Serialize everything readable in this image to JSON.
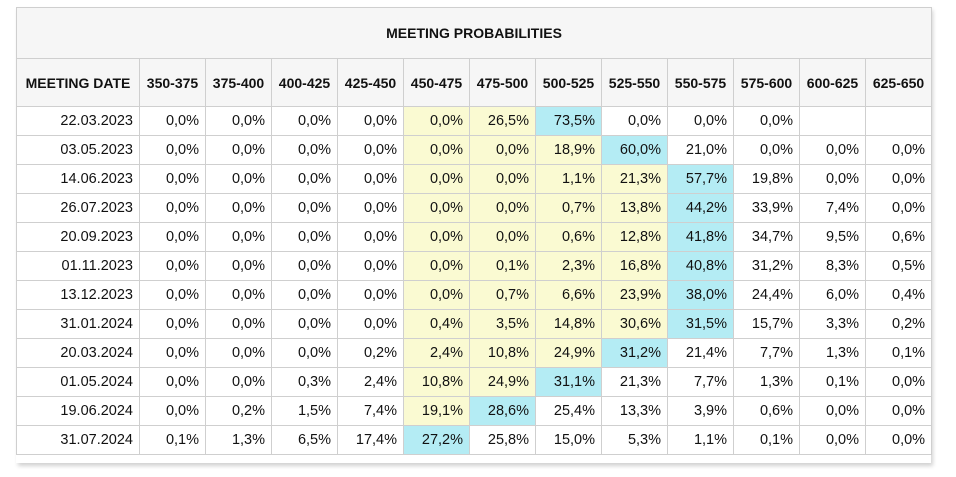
{
  "chart_data": {
    "type": "table",
    "title": "MEETING PROBABILITIES",
    "date_header": "MEETING DATE",
    "columns": [
      "350-375",
      "375-400",
      "400-425",
      "425-450",
      "450-475",
      "475-500",
      "500-525",
      "525-550",
      "550-575",
      "575-600",
      "600-625",
      "625-650"
    ],
    "rows": [
      {
        "date": "22.03.2023",
        "values": [
          "0,0%",
          "0,0%",
          "0,0%",
          "0,0%",
          "0,0%",
          "26,5%",
          "73,5%",
          "0,0%",
          "0,0%",
          "0,0%",
          "",
          ""
        ],
        "highlight": [
          "",
          "",
          "",
          "",
          "yellow",
          "yellow",
          "cyan",
          "",
          "",
          "",
          "",
          ""
        ]
      },
      {
        "date": "03.05.2023",
        "values": [
          "0,0%",
          "0,0%",
          "0,0%",
          "0,0%",
          "0,0%",
          "0,0%",
          "18,9%",
          "60,0%",
          "21,0%",
          "0,0%",
          "0,0%",
          "0,0%"
        ],
        "highlight": [
          "",
          "",
          "",
          "",
          "yellow",
          "yellow",
          "yellow",
          "cyan",
          "",
          "",
          "",
          ""
        ]
      },
      {
        "date": "14.06.2023",
        "values": [
          "0,0%",
          "0,0%",
          "0,0%",
          "0,0%",
          "0,0%",
          "0,0%",
          "1,1%",
          "21,3%",
          "57,7%",
          "19,8%",
          "0,0%",
          "0,0%"
        ],
        "highlight": [
          "",
          "",
          "",
          "",
          "yellow",
          "yellow",
          "yellow",
          "yellow",
          "cyan",
          "",
          "",
          ""
        ]
      },
      {
        "date": "26.07.2023",
        "values": [
          "0,0%",
          "0,0%",
          "0,0%",
          "0,0%",
          "0,0%",
          "0,0%",
          "0,7%",
          "13,8%",
          "44,2%",
          "33,9%",
          "7,4%",
          "0,0%"
        ],
        "highlight": [
          "",
          "",
          "",
          "",
          "yellow",
          "yellow",
          "yellow",
          "yellow",
          "cyan",
          "",
          "",
          ""
        ]
      },
      {
        "date": "20.09.2023",
        "values": [
          "0,0%",
          "0,0%",
          "0,0%",
          "0,0%",
          "0,0%",
          "0,0%",
          "0,6%",
          "12,8%",
          "41,8%",
          "34,7%",
          "9,5%",
          "0,6%"
        ],
        "highlight": [
          "",
          "",
          "",
          "",
          "yellow",
          "yellow",
          "yellow",
          "yellow",
          "cyan",
          "",
          "",
          ""
        ]
      },
      {
        "date": "01.11.2023",
        "values": [
          "0,0%",
          "0,0%",
          "0,0%",
          "0,0%",
          "0,0%",
          "0,1%",
          "2,3%",
          "16,8%",
          "40,8%",
          "31,2%",
          "8,3%",
          "0,5%"
        ],
        "highlight": [
          "",
          "",
          "",
          "",
          "yellow",
          "yellow",
          "yellow",
          "yellow",
          "cyan",
          "",
          "",
          ""
        ]
      },
      {
        "date": "13.12.2023",
        "values": [
          "0,0%",
          "0,0%",
          "0,0%",
          "0,0%",
          "0,0%",
          "0,7%",
          "6,6%",
          "23,9%",
          "38,0%",
          "24,4%",
          "6,0%",
          "0,4%"
        ],
        "highlight": [
          "",
          "",
          "",
          "",
          "yellow",
          "yellow",
          "yellow",
          "yellow",
          "cyan",
          "",
          "",
          ""
        ]
      },
      {
        "date": "31.01.2024",
        "values": [
          "0,0%",
          "0,0%",
          "0,0%",
          "0,0%",
          "0,4%",
          "3,5%",
          "14,8%",
          "30,6%",
          "31,5%",
          "15,7%",
          "3,3%",
          "0,2%"
        ],
        "highlight": [
          "",
          "",
          "",
          "",
          "yellow",
          "yellow",
          "yellow",
          "yellow",
          "cyan",
          "",
          "",
          ""
        ]
      },
      {
        "date": "20.03.2024",
        "values": [
          "0,0%",
          "0,0%",
          "0,0%",
          "0,2%",
          "2,4%",
          "10,8%",
          "24,9%",
          "31,2%",
          "21,4%",
          "7,7%",
          "1,3%",
          "0,1%"
        ],
        "highlight": [
          "",
          "",
          "",
          "",
          "yellow",
          "yellow",
          "yellow",
          "cyan",
          "",
          "",
          "",
          ""
        ]
      },
      {
        "date": "01.05.2024",
        "values": [
          "0,0%",
          "0,0%",
          "0,3%",
          "2,4%",
          "10,8%",
          "24,9%",
          "31,1%",
          "21,3%",
          "7,7%",
          "1,3%",
          "0,1%",
          "0,0%"
        ],
        "highlight": [
          "",
          "",
          "",
          "",
          "yellow",
          "yellow",
          "cyan",
          "",
          "",
          "",
          "",
          ""
        ]
      },
      {
        "date": "19.06.2024",
        "values": [
          "0,0%",
          "0,2%",
          "1,5%",
          "7,4%",
          "19,1%",
          "28,6%",
          "25,4%",
          "13,3%",
          "3,9%",
          "0,6%",
          "0,0%",
          "0,0%"
        ],
        "highlight": [
          "",
          "",
          "",
          "",
          "yellow",
          "cyan",
          "",
          "",
          "",
          "",
          "",
          ""
        ]
      },
      {
        "date": "31.07.2024",
        "values": [
          "0,1%",
          "1,3%",
          "6,5%",
          "17,4%",
          "27,2%",
          "25,8%",
          "15,0%",
          "5,3%",
          "1,1%",
          "0,1%",
          "0,0%",
          "0,0%"
        ],
        "highlight": [
          "",
          "",
          "",
          "",
          "cyan",
          "",
          "",
          "",
          "",
          "",
          "",
          ""
        ]
      }
    ]
  },
  "colors": {
    "yellow": "#fafad2",
    "cyan": "#b4ecf4",
    "header_bg": "#f6f6f6",
    "border": "#cfcfcf"
  }
}
